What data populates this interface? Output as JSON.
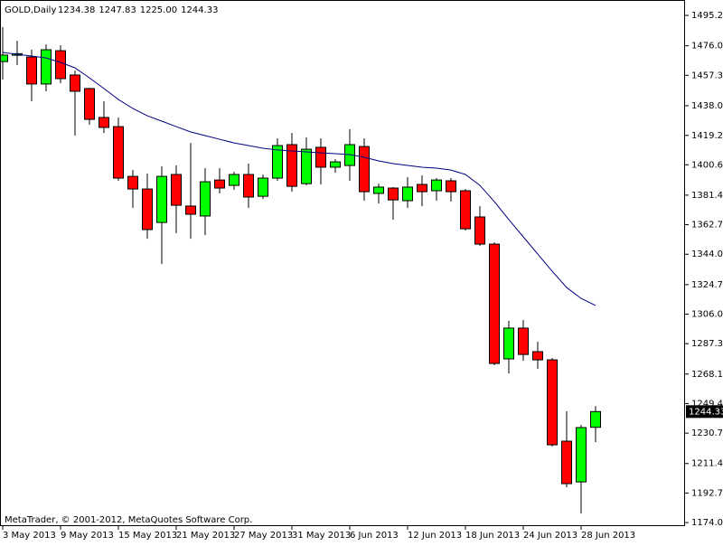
{
  "chart_data": {
    "type": "candlestick",
    "title": "GOLD,Daily",
    "header_values": [
      "1234.38",
      "1247.83",
      "1225.00",
      "1244.33"
    ],
    "footnote": "MetaTrader, © 2001-2012, MetaQuotes Software Corp.",
    "categories": [
      "3 May 2013",
      null,
      null,
      null,
      "9 May 2013",
      null,
      null,
      null,
      "15 May 2013",
      null,
      null,
      null,
      "21 May 2013",
      null,
      null,
      null,
      "27 May 2013",
      null,
      null,
      null,
      "31 May 2013",
      null,
      null,
      null,
      "6 Jun 2013",
      null,
      null,
      null,
      "12 Jun 2013",
      null,
      null,
      null,
      "18 Jun 2013",
      null,
      null,
      null,
      "24 Jun 2013",
      null,
      null,
      null,
      "28 Jun 2013",
      null
    ],
    "open": [
      1466.0,
      1470.0,
      1468.9,
      1451.8,
      1472.9,
      1457.5,
      1448.9,
      1430.6,
      1424.8,
      1393.3,
      1385.3,
      1364.1,
      1394.5,
      1374.5,
      1368.2,
      1391.0,
      1387.6,
      1394.5,
      1380.7,
      1392.2,
      1413.4,
      1388.7,
      1411.7,
      1399.1,
      1400.2,
      1412.2,
      1382.5,
      1385.9,
      1377.9,
      1388.2,
      1384.2,
      1390.5,
      1384.2,
      1367.6,
      1350.4,
      1277.7,
      1297.2,
      1282.3,
      1277.1,
      1225.6,
      1199.8,
      1234.38
    ],
    "high": [
      1487.8,
      1479.2,
      1473.5,
      1476.9,
      1476.4,
      1460.3,
      1449.5,
      1440.9,
      1430.6,
      1397.3,
      1395.1,
      1399.6,
      1400.2,
      1414.5,
      1398.5,
      1398.5,
      1396.2,
      1401.4,
      1394.5,
      1417.4,
      1420.8,
      1418.0,
      1417.4,
      1404.2,
      1423.1,
      1417.4,
      1388.7,
      1386.5,
      1392.8,
      1393.9,
      1392.2,
      1392.2,
      1385.3,
      1374.4,
      1351.5,
      1301.8,
      1302.3,
      1288.6,
      1278.3,
      1244.5,
      1235.9,
      1247.83
    ],
    "low": [
      1454.6,
      1463.8,
      1440.9,
      1447.2,
      1452.3,
      1419.1,
      1426.0,
      1420.8,
      1390.5,
      1373.3,
      1353.8,
      1337.8,
      1357.3,
      1353.8,
      1356.1,
      1382.5,
      1384.8,
      1373.3,
      1379.0,
      1390.5,
      1383.6,
      1387.6,
      1388.2,
      1395.6,
      1390.5,
      1377.9,
      1376.2,
      1365.9,
      1373.3,
      1374.4,
      1377.9,
      1377.3,
      1359.0,
      1349.2,
      1273.7,
      1268.5,
      1276.5,
      1271.4,
      1222.2,
      1196.4,
      1179.8,
      1225.0
    ],
    "close": [
      1470.1,
      1471.0,
      1451.8,
      1473.5,
      1455.2,
      1447.2,
      1429.4,
      1424.3,
      1392.2,
      1385.3,
      1359.6,
      1393.3,
      1375.0,
      1369.3,
      1389.9,
      1385.9,
      1394.5,
      1380.2,
      1392.2,
      1412.8,
      1387.0,
      1410.5,
      1399.1,
      1402.5,
      1413.4,
      1383.6,
      1386.5,
      1378.4,
      1386.5,
      1383.6,
      1391.0,
      1383.6,
      1360.1,
      1350.4,
      1274.8,
      1297.2,
      1280.5,
      1277.1,
      1223.3,
      1198.7,
      1234.2,
      1244.33
    ],
    "up_color": "#00ff00",
    "down_color": "#ff0000",
    "moving_average": {
      "color": "#000080",
      "values": [
        1471.8,
        1470.6,
        1469.5,
        1468.3,
        1465.5,
        1462.0,
        1455.7,
        1448.9,
        1442.0,
        1436.3,
        1431.7,
        1428.3,
        1424.8,
        1421.4,
        1419.1,
        1416.8,
        1414.5,
        1412.8,
        1411.1,
        1410.0,
        1409.4,
        1408.8,
        1408.2,
        1407.7,
        1407.1,
        1405.4,
        1403.1,
        1401.4,
        1400.2,
        1399.1,
        1398.5,
        1397.3,
        1394.5,
        1387.6,
        1377.3,
        1365.9,
        1355.0,
        1344.1,
        1333.2,
        1322.9,
        1316.0,
        1311.5
      ]
    },
    "current_price": {
      "value": 1244.33,
      "label": "1244.33"
    },
    "ylim": [
      1171.8,
      1505.0
    ],
    "yticks": [
      {
        "value": 1495.25,
        "label": "1495.25"
      },
      {
        "value": 1476.0,
        "label": "1476.00"
      },
      {
        "value": 1457.3,
        "label": "1457.30"
      },
      {
        "value": 1438.05,
        "label": "1438.05"
      },
      {
        "value": 1419.25,
        "label": "1419.25"
      },
      {
        "value": 1400.65,
        "label": "1400.65"
      },
      {
        "value": 1381.4,
        "label": "1381.40"
      },
      {
        "value": 1362.7,
        "label": "1362.70"
      },
      {
        "value": 1344.0,
        "label": "1344.00"
      },
      {
        "value": 1324.75,
        "label": "1324.75"
      },
      {
        "value": 1306.05,
        "label": "1306.05"
      },
      {
        "value": 1287.35,
        "label": "1287.35"
      },
      {
        "value": 1268.1,
        "label": "1268.10"
      },
      {
        "value": 1249.4,
        "label": "1249.40"
      },
      {
        "value": 1230.7,
        "label": "1230.70"
      },
      {
        "value": 1211.45,
        "label": "1211.45"
      },
      {
        "value": 1192.75,
        "label": "1192.75"
      },
      {
        "value": 1174.05,
        "label": "1174.05"
      }
    ]
  }
}
